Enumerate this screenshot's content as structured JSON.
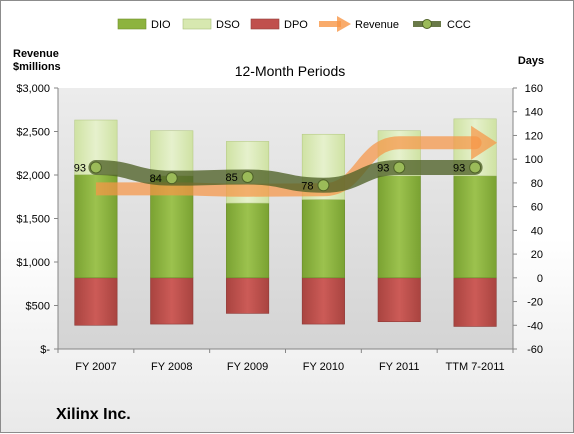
{
  "company": "Xilinx Inc.",
  "chart_data": {
    "type": "bar",
    "title": "12-Month Periods",
    "left_axis_label": [
      "Revenue",
      "$millions"
    ],
    "right_axis_label": "Days",
    "categories": [
      "FY 2007",
      "FY 2008",
      "FY 2009",
      "FY 2010",
      "FY 2011",
      "TTM 7-2011"
    ],
    "left_axis": {
      "ylim": [
        0,
        3000
      ],
      "ticks": [
        "$-",
        "$500",
        "$1,000",
        "$1,500",
        "$2,000",
        "$2,500",
        "$3,000"
      ]
    },
    "right_axis": {
      "ylim": [
        -60,
        160
      ],
      "ticks": [
        "-60",
        "-40",
        "-20",
        "0",
        "20",
        "40",
        "60",
        "80",
        "100",
        "120",
        "140",
        "160"
      ]
    },
    "legend": {
      "position": "top",
      "items": [
        {
          "name": "DIO",
          "color": "#8db33e"
        },
        {
          "name": "DSO",
          "color": "#d7e8b0"
        },
        {
          "name": "DPO",
          "color": "#c0504d"
        },
        {
          "name": "Revenue",
          "color": "#f79646"
        },
        {
          "name": "CCC",
          "color": "#4f6228"
        }
      ]
    },
    "series": [
      {
        "name": "DIO",
        "axis": "right",
        "values": [
          87,
          86,
          63,
          66,
          86,
          86
        ]
      },
      {
        "name": "DSO",
        "axis": "right",
        "values": [
          46,
          38,
          52,
          55,
          38,
          48
        ]
      },
      {
        "name": "DPO",
        "axis": "right",
        "values": [
          -40,
          -39,
          -30,
          -39,
          -37,
          -41
        ]
      },
      {
        "name": "Revenue",
        "axis": "left",
        "values": [
          1840,
          1840,
          1825,
          1830,
          2370,
          2370
        ]
      },
      {
        "name": "CCC",
        "axis": "right",
        "values": [
          93,
          84,
          85,
          78,
          93,
          93
        ]
      }
    ],
    "data_labels": [
      "93",
      "84",
      "85",
      "78",
      "93",
      "93"
    ],
    "grid": false
  }
}
